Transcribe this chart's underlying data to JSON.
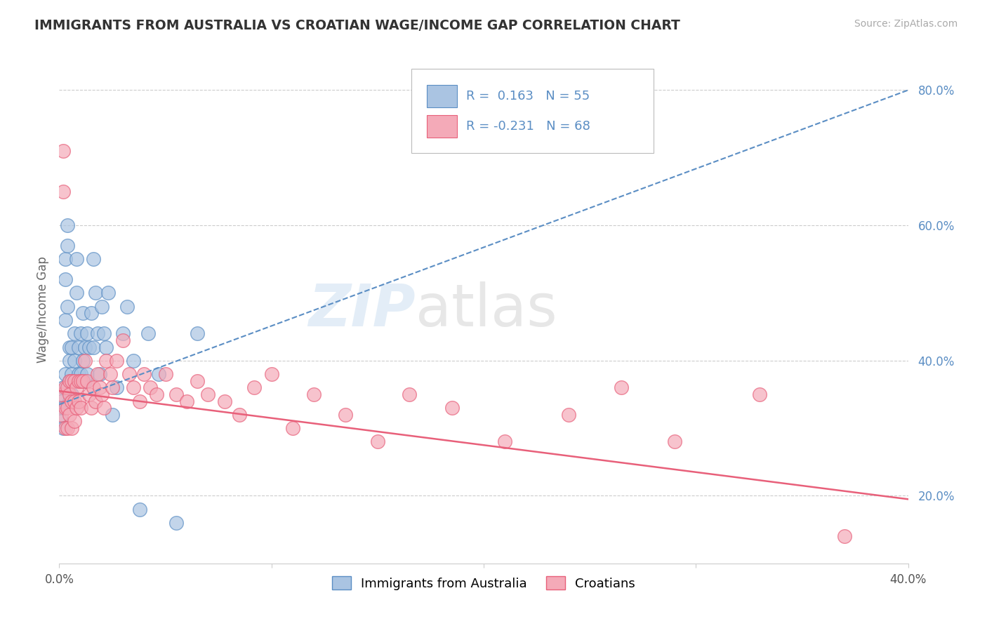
{
  "title": "IMMIGRANTS FROM AUSTRALIA VS CROATIAN WAGE/INCOME GAP CORRELATION CHART",
  "source": "Source: ZipAtlas.com",
  "ylabel": "Wage/Income Gap",
  "xlim": [
    0.0,
    0.4
  ],
  "ylim": [
    0.1,
    0.85
  ],
  "xticks": [
    0.0,
    0.1,
    0.2,
    0.3,
    0.4
  ],
  "xtick_labels": [
    "0.0%",
    "",
    "",
    "",
    "40.0%"
  ],
  "ytick_right": [
    0.2,
    0.4,
    0.6,
    0.8
  ],
  "ytick_right_labels": [
    "20.0%",
    "40.0%",
    "60.0%",
    "80.0%"
  ],
  "grid_color": "#cccccc",
  "background_color": "#ffffff",
  "blue_color": "#5b8ec4",
  "blue_fill": "#aac4e2",
  "pink_color": "#e8607a",
  "pink_fill": "#f4aab8",
  "R1": 0.163,
  "N1": 55,
  "R2": -0.231,
  "N2": 68,
  "legend_label1": "Immigrants from Australia",
  "legend_label2": "Croatians",
  "aus_trend": [
    0.335,
    0.8
  ],
  "cro_trend": [
    0.355,
    0.195
  ],
  "australia_x": [
    0.001,
    0.001,
    0.002,
    0.002,
    0.002,
    0.003,
    0.003,
    0.003,
    0.003,
    0.004,
    0.004,
    0.004,
    0.005,
    0.005,
    0.005,
    0.005,
    0.006,
    0.006,
    0.006,
    0.007,
    0.007,
    0.007,
    0.008,
    0.008,
    0.009,
    0.009,
    0.01,
    0.01,
    0.011,
    0.011,
    0.012,
    0.012,
    0.013,
    0.013,
    0.014,
    0.015,
    0.016,
    0.016,
    0.017,
    0.018,
    0.019,
    0.02,
    0.021,
    0.022,
    0.023,
    0.025,
    0.027,
    0.03,
    0.032,
    0.035,
    0.038,
    0.042,
    0.047,
    0.055,
    0.065
  ],
  "australia_y": [
    0.34,
    0.31,
    0.36,
    0.33,
    0.3,
    0.55,
    0.52,
    0.46,
    0.38,
    0.6,
    0.57,
    0.48,
    0.42,
    0.4,
    0.37,
    0.34,
    0.42,
    0.38,
    0.35,
    0.44,
    0.4,
    0.37,
    0.55,
    0.5,
    0.42,
    0.38,
    0.44,
    0.38,
    0.47,
    0.4,
    0.42,
    0.37,
    0.44,
    0.38,
    0.42,
    0.47,
    0.55,
    0.42,
    0.5,
    0.44,
    0.38,
    0.48,
    0.44,
    0.42,
    0.5,
    0.32,
    0.36,
    0.44,
    0.48,
    0.4,
    0.18,
    0.44,
    0.38,
    0.16,
    0.44
  ],
  "croatian_x": [
    0.001,
    0.001,
    0.002,
    0.002,
    0.003,
    0.003,
    0.003,
    0.004,
    0.004,
    0.004,
    0.005,
    0.005,
    0.005,
    0.006,
    0.006,
    0.006,
    0.007,
    0.007,
    0.007,
    0.008,
    0.008,
    0.009,
    0.009,
    0.01,
    0.01,
    0.011,
    0.012,
    0.013,
    0.014,
    0.015,
    0.016,
    0.017,
    0.018,
    0.019,
    0.02,
    0.021,
    0.022,
    0.024,
    0.025,
    0.027,
    0.03,
    0.033,
    0.035,
    0.038,
    0.04,
    0.043,
    0.046,
    0.05,
    0.055,
    0.06,
    0.065,
    0.07,
    0.078,
    0.085,
    0.092,
    0.1,
    0.11,
    0.12,
    0.135,
    0.15,
    0.165,
    0.185,
    0.21,
    0.24,
    0.265,
    0.29,
    0.33,
    0.37
  ],
  "croatian_y": [
    0.35,
    0.32,
    0.71,
    0.65,
    0.36,
    0.33,
    0.3,
    0.36,
    0.33,
    0.3,
    0.37,
    0.35,
    0.32,
    0.37,
    0.34,
    0.3,
    0.37,
    0.34,
    0.31,
    0.36,
    0.33,
    0.37,
    0.34,
    0.37,
    0.33,
    0.37,
    0.4,
    0.37,
    0.35,
    0.33,
    0.36,
    0.34,
    0.38,
    0.36,
    0.35,
    0.33,
    0.4,
    0.38,
    0.36,
    0.4,
    0.43,
    0.38,
    0.36,
    0.34,
    0.38,
    0.36,
    0.35,
    0.38,
    0.35,
    0.34,
    0.37,
    0.35,
    0.34,
    0.32,
    0.36,
    0.38,
    0.3,
    0.35,
    0.32,
    0.28,
    0.35,
    0.33,
    0.28,
    0.32,
    0.36,
    0.28,
    0.35,
    0.14
  ]
}
